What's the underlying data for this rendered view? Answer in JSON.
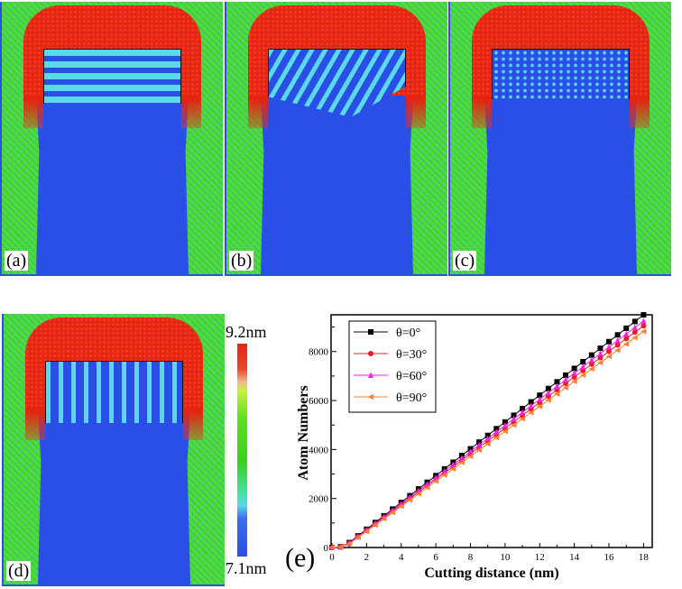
{
  "panels": [
    {
      "label": "(a)",
      "pattern": "horizontal-layers"
    },
    {
      "label": "(b)",
      "pattern": "inclined-layers"
    },
    {
      "label": "(c)",
      "pattern": "dotted-layers"
    },
    {
      "label": "(d)",
      "pattern": "vertical-layers"
    }
  ],
  "colorbar": {
    "max_label": "9.2nm",
    "min_label": "7.1nm",
    "colors": [
      "#e52412",
      "#5fe020",
      "#58d8e8",
      "#2a4fe6"
    ]
  },
  "chart_label": "(e)",
  "chart_data": {
    "type": "line",
    "xlabel": "Cutting distance (nm)",
    "ylabel": "Atom Numbers",
    "xlim": [
      0,
      18.5
    ],
    "ylim": [
      0,
      9500
    ],
    "xticks": [
      0,
      2,
      4,
      6,
      8,
      10,
      12,
      14,
      16,
      18
    ],
    "yticks": [
      0,
      2000,
      4000,
      6000,
      8000
    ],
    "grid": false,
    "legend_placement": "top-left",
    "x": [
      0,
      0.5,
      1,
      1.5,
      2,
      2.5,
      3,
      3.5,
      4,
      4.5,
      5,
      5.5,
      6,
      6.5,
      7,
      7.5,
      8,
      8.5,
      9,
      9.5,
      10,
      10.5,
      11,
      11.5,
      12,
      12.5,
      13,
      13.5,
      14,
      14.5,
      15,
      15.5,
      16,
      16.5,
      17,
      17.5,
      18
    ],
    "series": [
      {
        "name": "θ=0°",
        "color": "#000000",
        "marker": "square",
        "values": [
          0,
          30,
          200,
          474,
          747,
          1021,
          1294,
          1568,
          1841,
          2115,
          2388,
          2662,
          2935,
          3209,
          3482,
          3756,
          4029,
          4303,
          4576,
          4850,
          5123,
          5397,
          5670,
          5944,
          6217,
          6491,
          6764,
          7038,
          7311,
          7585,
          7858,
          8132,
          8405,
          8679,
          8952,
          9226,
          9500
        ]
      },
      {
        "name": "θ=30°",
        "color": "#ee1c24",
        "marker": "circle",
        "values": [
          0,
          25,
          170,
          431,
          692,
          954,
          1215,
          1476,
          1737,
          1998,
          2260,
          2521,
          2782,
          3043,
          3304,
          3566,
          3827,
          4088,
          4349,
          4610,
          4872,
          5133,
          5394,
          5655,
          5916,
          6178,
          6439,
          6700,
          6961,
          7222,
          7484,
          7745,
          8006,
          8267,
          8528,
          8789,
          9050
        ]
      },
      {
        "name": "θ=60°",
        "color": "#ff1ee6",
        "marker": "triangle-up",
        "values": [
          0,
          28,
          180,
          447,
          714,
          980,
          1247,
          1514,
          1781,
          2048,
          2314,
          2581,
          2848,
          3115,
          3382,
          3648,
          3915,
          4182,
          4449,
          4716,
          4982,
          5249,
          5516,
          5783,
          6050,
          6316,
          6583,
          6850,
          7117,
          7384,
          7650,
          7917,
          8184,
          8451,
          8718,
          8984,
          9250
        ]
      },
      {
        "name": "θ=90°",
        "color": "#f7812c",
        "marker": "triangle-left",
        "values": [
          0,
          20,
          150,
          405,
          660,
          915,
          1170,
          1425,
          1680,
          1935,
          2190,
          2445,
          2700,
          2955,
          3210,
          3465,
          3720,
          3975,
          4230,
          4485,
          4740,
          4995,
          5250,
          5505,
          5760,
          6015,
          6270,
          6525,
          6780,
          7035,
          7290,
          7545,
          7800,
          8055,
          8310,
          8565,
          8820
        ]
      }
    ]
  }
}
